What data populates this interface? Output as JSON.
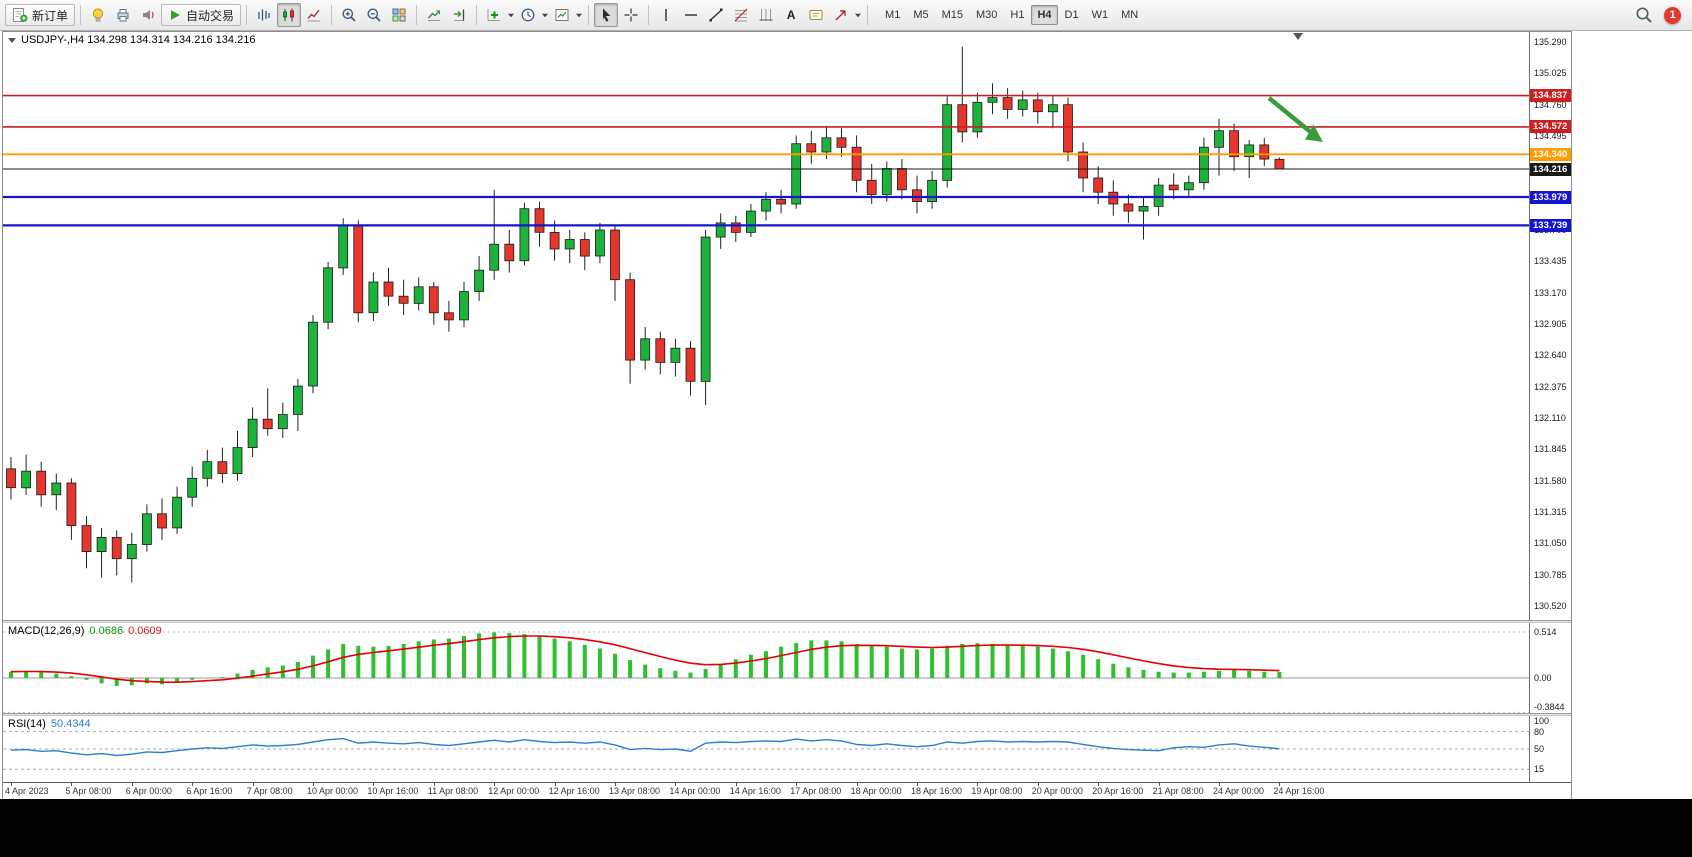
{
  "toolbar": {
    "new_order_label": "新订单",
    "auto_trading_label": "自动交易",
    "text_tool_label": "A",
    "timeframes": [
      "M1",
      "M5",
      "M15",
      "M30",
      "H1",
      "H4",
      "D1",
      "W1",
      "MN"
    ],
    "active_timeframe": "H4",
    "notification_count": "1",
    "icon_names": [
      "new-order-icon",
      "metaeditor-icon",
      "print-icon",
      "sound-icon",
      "auto-trading-icon",
      "bar-chart-icon",
      "candlestick-chart-icon",
      "line-chart-icon",
      "zoom-in-icon",
      "zoom-out-icon",
      "tile-windows-icon",
      "auto-scroll-icon",
      "chart-shift-icon",
      "indicators-icon",
      "periods-icon",
      "templates-icon",
      "cursor-icon",
      "crosshair-icon",
      "vertical-line-icon",
      "horizontal-line-icon",
      "trendline-icon",
      "fibonacci-icon",
      "cycle-lines-icon",
      "text-icon",
      "text-label-icon",
      "arrow-tools-icon",
      "dropdown-caret-icon",
      "search-icon",
      "notification-badge"
    ]
  },
  "chart": {
    "title": "USDJPY-,H4 134.298 134.314 134.216 134.216",
    "up_color": "#1db23c",
    "down_color": "#e6352b",
    "levels": [
      {
        "value": "134.837",
        "color": "#cc1f1f",
        "width": 1.6
      },
      {
        "value": "134.572",
        "color": "#cc1f1f",
        "width": 1.6
      },
      {
        "value": "134.340",
        "color": "#ff9c00",
        "width": 1.8
      },
      {
        "value": "134.216",
        "color": "#1a1a1a",
        "width": 1
      },
      {
        "value": "133.979",
        "color": "#1515cf",
        "width": 2.2
      },
      {
        "value": "133.739",
        "color": "#1515cf",
        "width": 2.2
      }
    ],
    "price_ticks": [
      "135.290",
      "135.025",
      "134.760",
      "134.495",
      "134.230",
      "133.965",
      "133.700",
      "133.435",
      "133.170",
      "132.905",
      "132.640",
      "132.375",
      "132.110",
      "131.845",
      "131.580",
      "131.315",
      "131.050",
      "130.785",
      "130.520"
    ]
  },
  "macd": {
    "name": "MACD(12,26,9)",
    "value1": "0.0686",
    "value2": "0.0609",
    "axis": [
      "0.514",
      "0.00",
      "-0.3844"
    ]
  },
  "rsi": {
    "name": "RSI(14)",
    "value": "50.4344",
    "axis": [
      "100",
      "80",
      "50",
      "15"
    ]
  },
  "time_axis": {
    "labels": [
      "4 Apr 2023",
      "5 Apr 08:00",
      "6 Apr 00:00",
      "6 Apr 16:00",
      "7 Apr 08:00",
      "10 Apr 00:00",
      "10 Apr 16:00",
      "11 Apr 08:00",
      "12 Apr 00:00",
      "12 Apr 16:00",
      "13 Apr 08:00",
      "14 Apr 00:00",
      "14 Apr 16:00",
      "17 Apr 08:00",
      "18 Apr 00:00",
      "18 Apr 16:00",
      "19 Apr 08:00",
      "20 Apr 00:00",
      "20 Apr 16:00",
      "21 Apr 08:00",
      "24 Apr 00:00",
      "24 Apr 16:00"
    ],
    "label_step_candles": 4
  },
  "chart_data": {
    "type": "candlestick",
    "symbol": "USDJPY-",
    "timeframe": "H4",
    "ohlc_last": {
      "open": 134.298,
      "high": 134.314,
      "low": 134.216,
      "close": 134.216
    },
    "price_range": [
      130.52,
      135.29
    ],
    "candles_ohlc": [
      [
        131.68,
        131.78,
        131.42,
        131.52
      ],
      [
        131.52,
        131.8,
        131.46,
        131.66
      ],
      [
        131.66,
        131.74,
        131.36,
        131.46
      ],
      [
        131.46,
        131.64,
        131.33,
        131.56
      ],
      [
        131.56,
        131.6,
        131.08,
        131.2
      ],
      [
        131.2,
        131.28,
        130.84,
        130.98
      ],
      [
        130.98,
        131.18,
        130.76,
        131.1
      ],
      [
        131.1,
        131.16,
        130.78,
        130.92
      ],
      [
        130.92,
        131.14,
        130.72,
        131.04
      ],
      [
        131.04,
        131.38,
        130.98,
        131.3
      ],
      [
        131.3,
        131.43,
        131.08,
        131.18
      ],
      [
        131.18,
        131.53,
        131.13,
        131.44
      ],
      [
        131.44,
        131.7,
        131.36,
        131.6
      ],
      [
        131.6,
        131.84,
        131.53,
        131.74
      ],
      [
        131.74,
        131.86,
        131.56,
        131.64
      ],
      [
        131.64,
        132.0,
        131.58,
        131.86
      ],
      [
        131.86,
        132.2,
        131.78,
        132.1
      ],
      [
        132.1,
        132.36,
        131.96,
        132.02
      ],
      [
        132.02,
        132.24,
        131.94,
        132.14
      ],
      [
        132.14,
        132.44,
        132.0,
        132.38
      ],
      [
        132.38,
        132.98,
        132.32,
        132.92
      ],
      [
        132.92,
        133.43,
        132.86,
        133.38
      ],
      [
        133.38,
        133.8,
        133.32,
        133.74
      ],
      [
        133.74,
        133.78,
        132.92,
        133.0
      ],
      [
        133.0,
        133.34,
        132.93,
        133.26
      ],
      [
        133.26,
        133.38,
        133.06,
        133.14
      ],
      [
        133.14,
        133.28,
        132.98,
        133.08
      ],
      [
        133.08,
        133.3,
        133.02,
        133.22
      ],
      [
        133.22,
        133.26,
        132.9,
        133.0
      ],
      [
        133.0,
        133.1,
        132.84,
        132.94
      ],
      [
        132.94,
        133.26,
        132.88,
        133.18
      ],
      [
        133.18,
        133.48,
        133.1,
        133.36
      ],
      [
        133.36,
        134.04,
        133.28,
        133.58
      ],
      [
        133.58,
        133.7,
        133.34,
        133.44
      ],
      [
        133.44,
        133.93,
        133.4,
        133.88
      ],
      [
        133.88,
        133.94,
        133.56,
        133.68
      ],
      [
        133.68,
        133.78,
        133.44,
        133.54
      ],
      [
        133.54,
        133.7,
        133.42,
        133.62
      ],
      [
        133.62,
        133.68,
        133.36,
        133.48
      ],
      [
        133.48,
        133.76,
        133.42,
        133.7
      ],
      [
        133.7,
        133.74,
        133.1,
        133.28
      ],
      [
        133.28,
        133.34,
        132.4,
        132.6
      ],
      [
        132.6,
        132.88,
        132.52,
        132.78
      ],
      [
        132.78,
        132.84,
        132.48,
        132.58
      ],
      [
        132.58,
        132.78,
        132.46,
        132.7
      ],
      [
        132.7,
        132.76,
        132.3,
        132.42
      ],
      [
        132.42,
        133.7,
        132.22,
        133.64
      ],
      [
        133.64,
        133.84,
        133.54,
        133.76
      ],
      [
        133.76,
        133.82,
        133.6,
        133.68
      ],
      [
        133.68,
        133.92,
        133.64,
        133.86
      ],
      [
        133.86,
        134.02,
        133.78,
        133.96
      ],
      [
        133.96,
        134.04,
        133.84,
        133.92
      ],
      [
        133.92,
        134.5,
        133.88,
        134.43
      ],
      [
        134.43,
        134.54,
        134.26,
        134.36
      ],
      [
        134.36,
        134.58,
        134.3,
        134.48
      ],
      [
        134.48,
        134.56,
        134.32,
        134.4
      ],
      [
        134.4,
        134.5,
        134.02,
        134.12
      ],
      [
        134.12,
        134.26,
        133.92,
        134.0
      ],
      [
        134.0,
        134.28,
        133.94,
        134.22
      ],
      [
        134.22,
        134.3,
        133.96,
        134.04
      ],
      [
        134.04,
        134.16,
        133.84,
        133.94
      ],
      [
        133.94,
        134.2,
        133.88,
        134.12
      ],
      [
        134.12,
        134.83,
        134.06,
        134.76
      ],
      [
        134.76,
        135.25,
        134.44,
        134.53
      ],
      [
        134.53,
        134.86,
        134.48,
        134.78
      ],
      [
        134.78,
        134.94,
        134.68,
        134.82
      ],
      [
        134.82,
        134.9,
        134.64,
        134.72
      ],
      [
        134.72,
        134.88,
        134.66,
        134.8
      ],
      [
        134.8,
        134.86,
        134.6,
        134.7
      ],
      [
        134.7,
        134.84,
        134.56,
        134.76
      ],
      [
        134.76,
        134.82,
        134.28,
        134.36
      ],
      [
        134.36,
        134.44,
        134.02,
        134.14
      ],
      [
        134.14,
        134.24,
        133.92,
        134.02
      ],
      [
        134.02,
        134.12,
        133.82,
        133.92
      ],
      [
        133.92,
        134.0,
        133.76,
        133.86
      ],
      [
        133.86,
        133.98,
        133.62,
        133.9
      ],
      [
        133.9,
        134.14,
        133.82,
        134.08
      ],
      [
        134.08,
        134.18,
        133.96,
        134.04
      ],
      [
        134.04,
        134.16,
        133.98,
        134.1
      ],
      [
        134.1,
        134.48,
        134.04,
        134.4
      ],
      [
        134.4,
        134.64,
        134.16,
        134.54
      ],
      [
        134.54,
        134.6,
        134.2,
        134.32
      ],
      [
        134.32,
        134.46,
        134.14,
        134.42
      ],
      [
        134.42,
        134.48,
        134.24,
        134.3
      ],
      [
        134.298,
        134.314,
        134.216,
        134.216
      ]
    ],
    "macd_histogram": [
      0.07,
      0.08,
      0.07,
      0.05,
      0.02,
      -0.02,
      -0.06,
      -0.09,
      -0.08,
      -0.06,
      -0.07,
      -0.05,
      -0.02,
      0.0,
      0.01,
      0.05,
      0.09,
      0.12,
      0.14,
      0.18,
      0.25,
      0.32,
      0.38,
      0.36,
      0.35,
      0.36,
      0.38,
      0.41,
      0.43,
      0.44,
      0.47,
      0.5,
      0.51,
      0.5,
      0.49,
      0.47,
      0.44,
      0.41,
      0.37,
      0.33,
      0.27,
      0.2,
      0.15,
      0.11,
      0.08,
      0.06,
      0.1,
      0.16,
      0.21,
      0.26,
      0.3,
      0.35,
      0.39,
      0.42,
      0.42,
      0.41,
      0.38,
      0.36,
      0.35,
      0.33,
      0.32,
      0.33,
      0.36,
      0.38,
      0.39,
      0.38,
      0.37,
      0.36,
      0.35,
      0.33,
      0.3,
      0.26,
      0.21,
      0.16,
      0.12,
      0.09,
      0.07,
      0.06,
      0.06,
      0.07,
      0.08,
      0.09,
      0.08,
      0.07,
      0.0686
    ],
    "rsi_values": [
      48,
      49,
      46,
      47,
      43,
      40,
      42,
      39,
      41,
      45,
      44,
      47,
      50,
      52,
      51,
      54,
      57,
      55,
      56,
      58,
      62,
      66,
      68,
      60,
      62,
      60,
      59,
      61,
      58,
      56,
      59,
      62,
      65,
      62,
      66,
      63,
      61,
      62,
      60,
      62,
      57,
      49,
      51,
      49,
      50,
      46,
      60,
      62,
      61,
      63,
      64,
      63,
      67,
      64,
      66,
      64,
      58,
      56,
      59,
      56,
      54,
      56,
      62,
      60,
      63,
      64,
      62,
      63,
      62,
      63,
      62,
      58,
      54,
      51,
      49,
      48,
      47,
      52,
      54,
      53,
      57,
      59,
      55,
      53,
      50.4
    ]
  },
  "annotations": [
    {
      "name": "green-arrow",
      "color": "#3a9b3a",
      "direction": "down-right"
    }
  ]
}
